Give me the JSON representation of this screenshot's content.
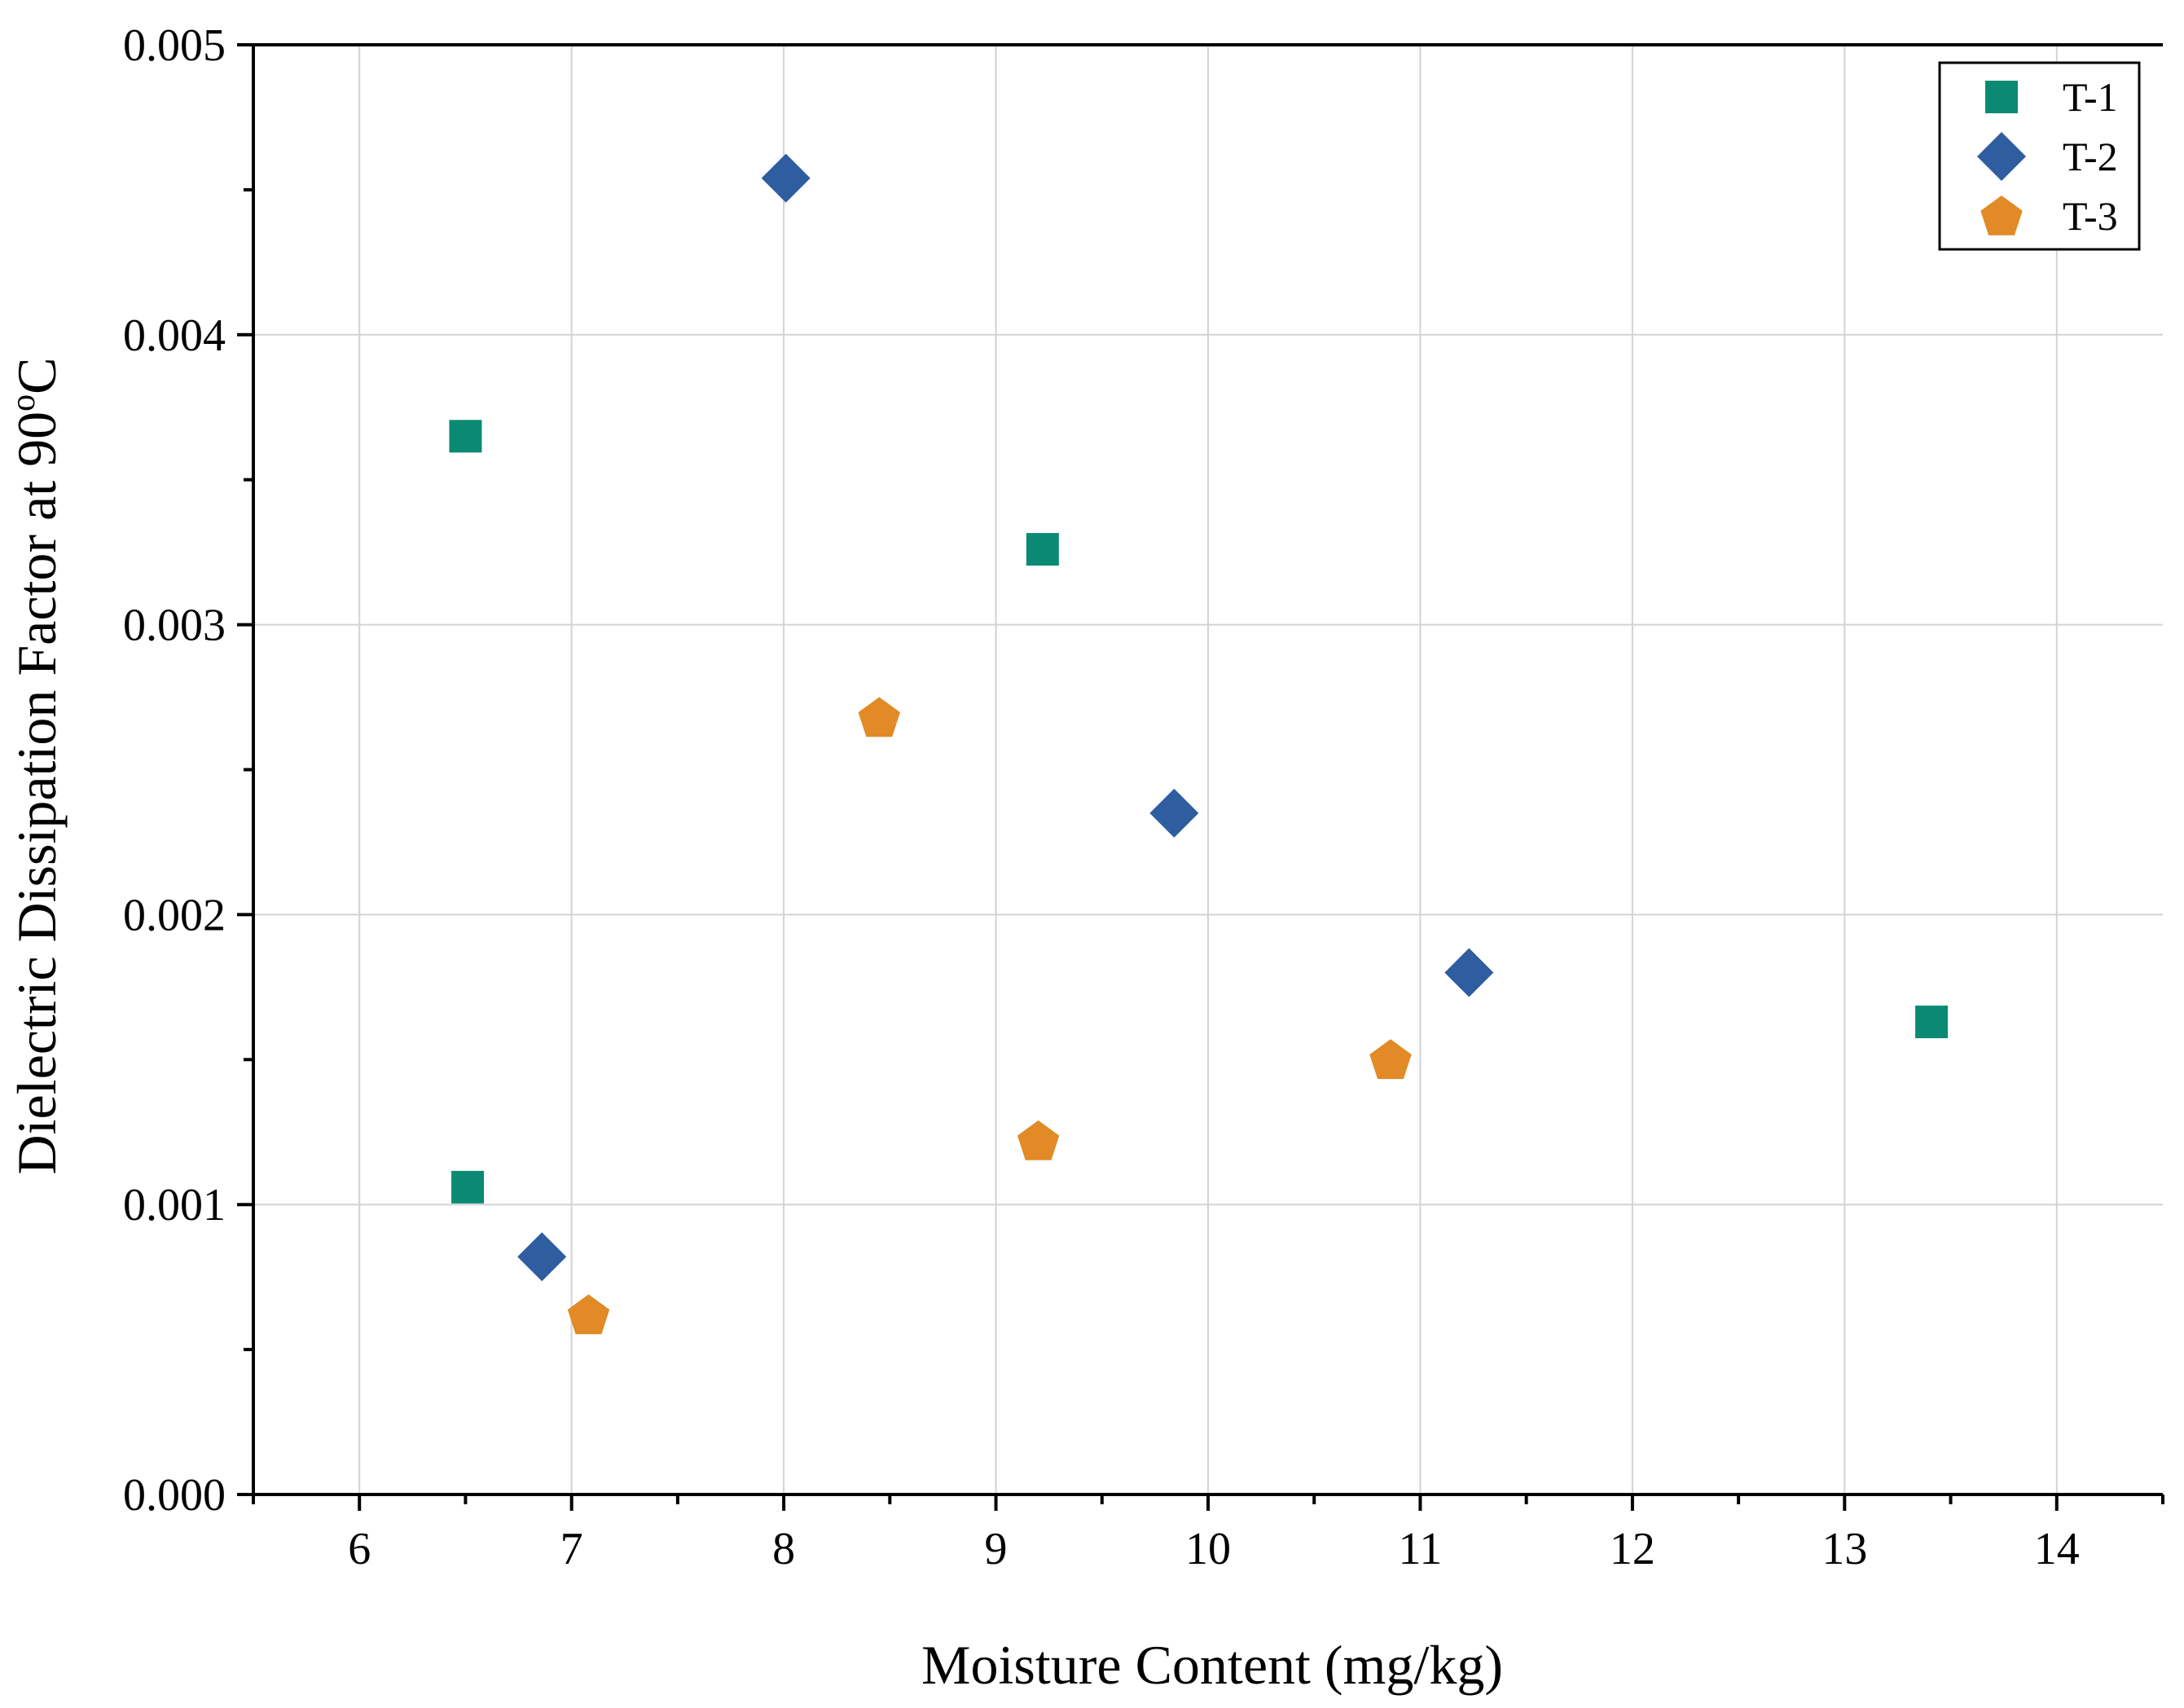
{
  "chart_data": {
    "type": "scatter",
    "title": "",
    "xlabel": "Moisture Content (mg/kg)",
    "ylabel": "Dielectric Dissipation Factor at 90",
    "ylabel_sup": "o",
    "ylabel_unit": "C",
    "xlim": [
      5.5,
      14.5
    ],
    "ylim": [
      0,
      0.005
    ],
    "x_ticks": [
      6,
      7,
      8,
      9,
      10,
      11,
      12,
      13,
      14
    ],
    "x_tick_labels": [
      "6",
      "7",
      "8",
      "9",
      "10",
      "11",
      "12",
      "13",
      "14"
    ],
    "y_ticks": [
      0,
      0.001,
      0.002,
      0.003,
      0.004,
      0.005
    ],
    "y_tick_labels": [
      "0.000",
      "0.001",
      "0.002",
      "0.003",
      "0.004",
      "0.005"
    ],
    "grid": true,
    "legend_position": "top-right",
    "series": [
      {
        "name": "T-1",
        "marker": "square",
        "color": "#0b8a73",
        "points": [
          {
            "x": 6.5,
            "y": 0.00365
          },
          {
            "x": 6.51,
            "y": 0.00106
          },
          {
            "x": 9.22,
            "y": 0.00326
          },
          {
            "x": 13.41,
            "y": 0.00163
          }
        ]
      },
      {
        "name": "T-2",
        "marker": "diamond",
        "color": "#2e5da0",
        "points": [
          {
            "x": 8.01,
            "y": 0.00454
          },
          {
            "x": 6.86,
            "y": 0.00082
          },
          {
            "x": 9.84,
            "y": 0.00235
          },
          {
            "x": 11.23,
            "y": 0.0018
          }
        ]
      },
      {
        "name": "T-3",
        "marker": "pentagon",
        "color": "#e18a26",
        "points": [
          {
            "x": 8.45,
            "y": 0.00268
          },
          {
            "x": 7.08,
            "y": 0.00062
          },
          {
            "x": 9.2,
            "y": 0.00122
          },
          {
            "x": 10.86,
            "y": 0.0015
          }
        ]
      }
    ]
  }
}
